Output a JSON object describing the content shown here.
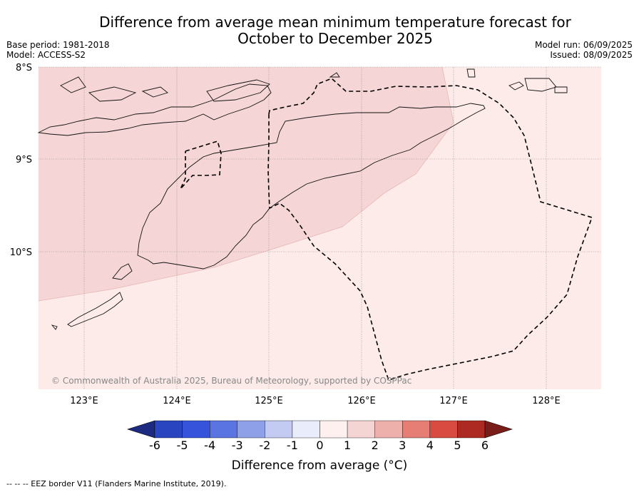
{
  "title_line1": "Difference from average mean minimum temperature forecast for",
  "title_line2": "October to December 2025",
  "base_period": "Base period: 1981-2018",
  "model": "Model: ACCESS-S2",
  "model_run": "Model run: 06/09/2025",
  "issued": "Issued: 08/09/2025",
  "map": {
    "lat_labels": [
      "8°S",
      "9°S",
      "10°S"
    ],
    "lon_labels": [
      "123°E",
      "124°E",
      "125°E",
      "126°E",
      "127°E",
      "128°E"
    ],
    "copyright": "© Commonwealth of Australia 2025, Bureau of Meteorology, supported by COSPPac",
    "fill_colors": {
      "band_1_to_2": "#f5d5d5",
      "band_0_to_1": "#fcebe9"
    }
  },
  "colorbar": {
    "ticks": [
      "-6",
      "-5",
      "-4",
      "-3",
      "-2",
      "-1",
      "0",
      "1",
      "2",
      "3",
      "4",
      "5",
      "6"
    ],
    "colors": [
      "#1c2a80",
      "#2a45c0",
      "#3654db",
      "#5a74e2",
      "#8ea0e8",
      "#c3cbf2",
      "#e9ecfb",
      "#fdf0ef",
      "#f5d5d3",
      "#eeb0aa",
      "#e67e76",
      "#d94a40",
      "#ad2a22",
      "#7a1c18"
    ],
    "label": "Difference from average (°C)"
  },
  "footer": "-- -- -- EEZ border V11 (Flanders Marine Institute, 2019)."
}
